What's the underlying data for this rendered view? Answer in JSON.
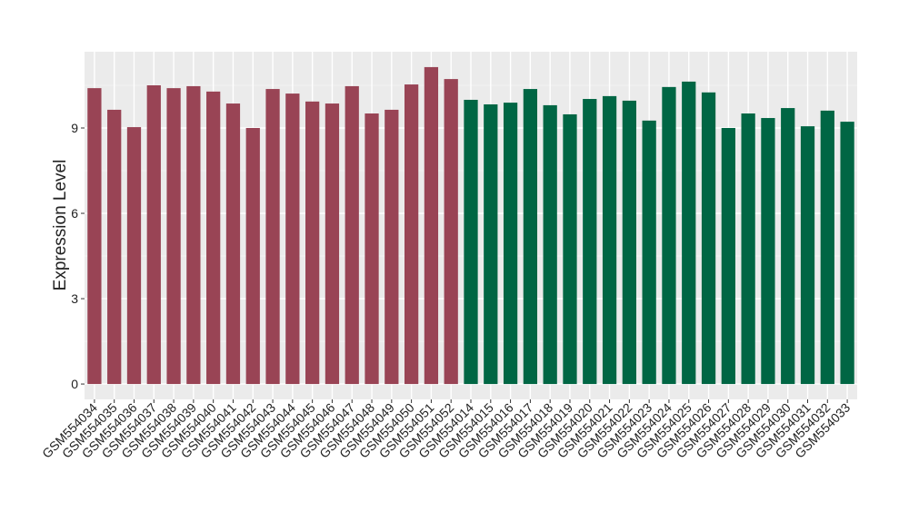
{
  "chart_data": {
    "type": "bar",
    "y_label": "Expression Level",
    "categories": [
      "GSM554034",
      "GSM554035",
      "GSM554036",
      "GSM554037",
      "GSM554038",
      "GSM554039",
      "GSM554040",
      "GSM554041",
      "GSM554042",
      "GSM554043",
      "GSM554044",
      "GSM554045",
      "GSM554046",
      "GSM554047",
      "GSM554048",
      "GSM554049",
      "GSM554050",
      "GSM554051",
      "GSM554052",
      "GSM554014",
      "GSM554015",
      "GSM554016",
      "GSM554017",
      "GSM554018",
      "GSM554019",
      "GSM554020",
      "GSM554021",
      "GSM554022",
      "GSM554023",
      "GSM554024",
      "GSM554025",
      "GSM554026",
      "GSM554027",
      "GSM554028",
      "GSM554029",
      "GSM554030",
      "GSM554031",
      "GSM554032",
      "GSM554033"
    ],
    "values": [
      10.4,
      9.64,
      9.03,
      10.5,
      10.4,
      10.47,
      10.28,
      9.86,
      9.0,
      10.37,
      10.21,
      9.93,
      9.86,
      10.47,
      9.51,
      9.64,
      10.53,
      11.14,
      10.72,
      9.99,
      9.83,
      9.89,
      10.37,
      9.8,
      9.48,
      10.02,
      10.12,
      9.96,
      9.26,
      10.44,
      10.63,
      10.25,
      9.0,
      9.51,
      9.35,
      9.7,
      9.06,
      9.61,
      9.22
    ],
    "colors": [
      "#994455",
      "#994455",
      "#994455",
      "#994455",
      "#994455",
      "#994455",
      "#994455",
      "#994455",
      "#994455",
      "#994455",
      "#994455",
      "#994455",
      "#994455",
      "#994455",
      "#994455",
      "#994455",
      "#994455",
      "#994455",
      "#994455",
      "#006644",
      "#006644",
      "#006644",
      "#006644",
      "#006644",
      "#006644",
      "#006644",
      "#006644",
      "#006644",
      "#006644",
      "#006644",
      "#006644",
      "#006644",
      "#006644",
      "#006644",
      "#006644",
      "#006644",
      "#006644",
      "#006644",
      "#006644"
    ],
    "ylim": [
      -0.54,
      11.68
    ],
    "yticks": [
      0,
      3,
      6,
      9
    ],
    "minor_yticks": [
      1.5,
      4.5,
      7.5,
      10.5
    ],
    "grid": true
  }
}
